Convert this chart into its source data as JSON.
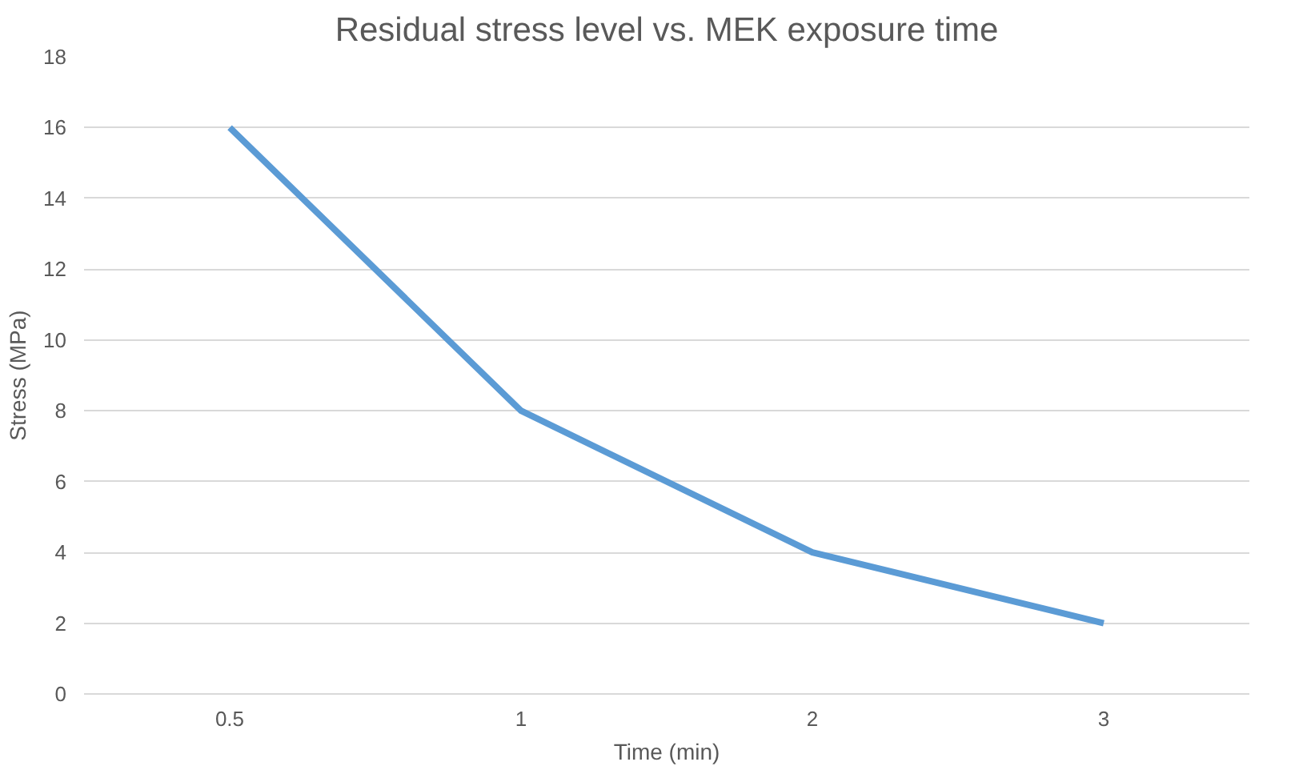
{
  "chart_data": {
    "type": "line",
    "title": "Residual stress level vs. MEK exposure time",
    "xlabel": "Time (min)",
    "ylabel": "Stress (MPa)",
    "categories": [
      "0.5",
      "1",
      "2",
      "3"
    ],
    "series": [
      {
        "color": "#5b9bd5",
        "values": [
          16,
          8,
          4,
          2
        ]
      }
    ],
    "ylim": [
      0,
      18
    ],
    "yticks": [
      0,
      2,
      4,
      6,
      8,
      10,
      12,
      14,
      16,
      18
    ],
    "grid": "y",
    "marker": "none",
    "line_style": "solid"
  }
}
